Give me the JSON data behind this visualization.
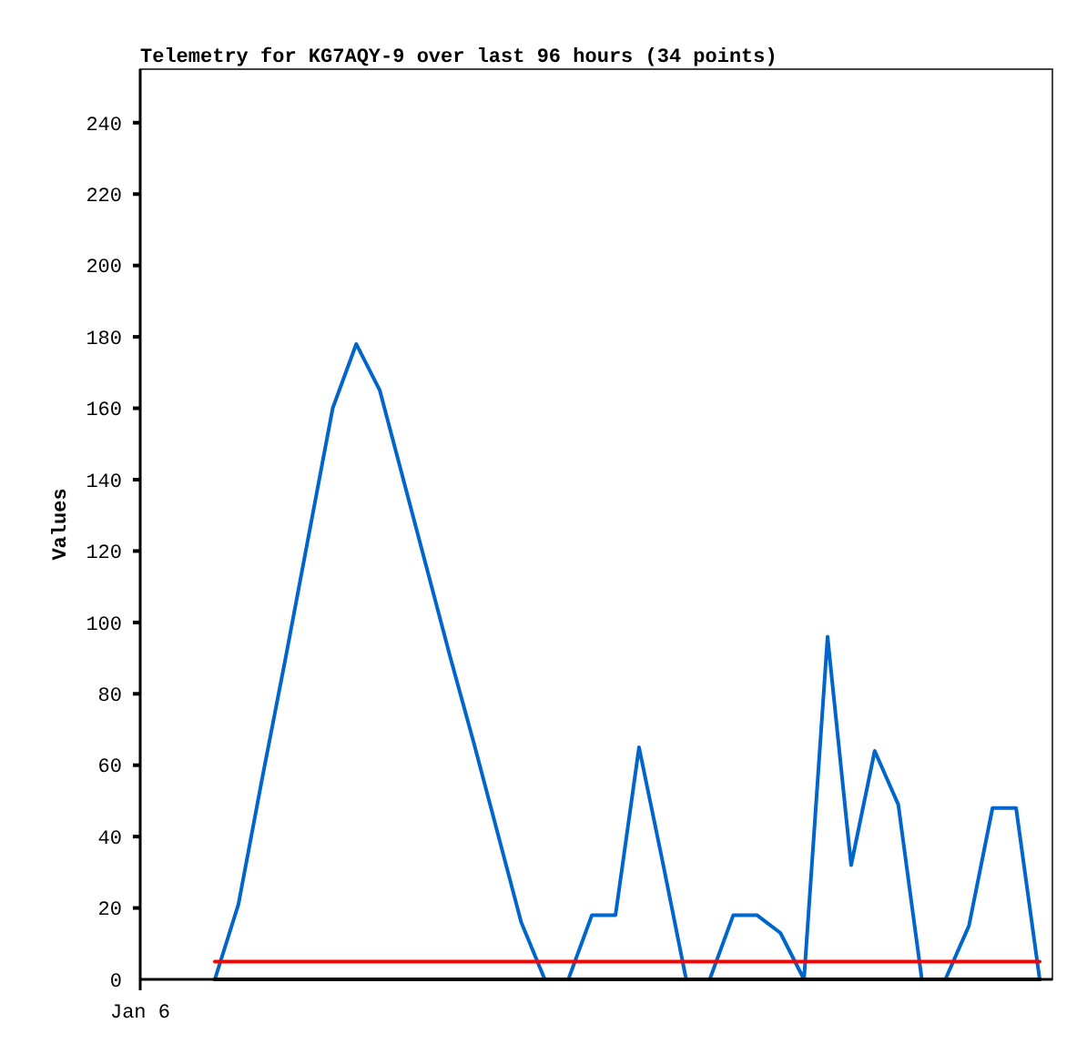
{
  "chart_data": {
    "type": "line",
    "title": "Telemetry for KG7AQY-9 over last 96 hours (34 points)",
    "ylabel": "Values",
    "annotations": [
      "Jan 6"
    ],
    "categories": [
      null,
      null,
      null,
      null,
      null,
      null,
      null,
      null,
      null,
      null,
      null,
      null,
      null,
      null,
      null,
      null,
      null,
      null,
      null,
      null,
      null,
      null,
      null,
      null,
      null,
      null,
      null,
      null,
      null,
      null,
      null,
      null,
      null,
      null,
      null,
      null
    ],
    "ylim": [
      0,
      255
    ],
    "yticks": [
      0,
      20,
      40,
      60,
      80,
      100,
      120,
      140,
      160,
      180,
      200,
      220,
      240
    ],
    "series": [
      {
        "color": "#0066cc",
        "values": [
          0,
          21,
          56,
          90,
          125,
          160,
          178,
          165,
          140,
          115,
          90,
          66,
          41,
          16,
          0,
          0,
          18,
          18,
          65,
          33,
          0,
          0,
          18,
          18,
          13,
          0,
          96,
          32,
          64,
          49,
          0,
          0,
          15,
          48,
          48,
          0
        ]
      },
      {
        "color": "#ff0000",
        "values": [
          5,
          5,
          5,
          5,
          5,
          5,
          5,
          5,
          5,
          5,
          5,
          5,
          5,
          5,
          5,
          5,
          5,
          5,
          5,
          5,
          5,
          5,
          5,
          5,
          5,
          5,
          5,
          5,
          5,
          5,
          5,
          5,
          5,
          5,
          5,
          5
        ]
      },
      {
        "color": "#000000",
        "values": [
          0,
          0,
          0,
          0,
          0,
          0,
          0,
          0,
          0,
          0,
          0,
          0,
          0,
          0,
          0,
          0,
          0,
          0,
          0,
          0,
          0,
          0,
          0,
          0,
          0,
          0,
          0,
          0,
          0,
          0,
          0,
          0,
          0,
          0,
          0,
          0
        ]
      }
    ]
  }
}
